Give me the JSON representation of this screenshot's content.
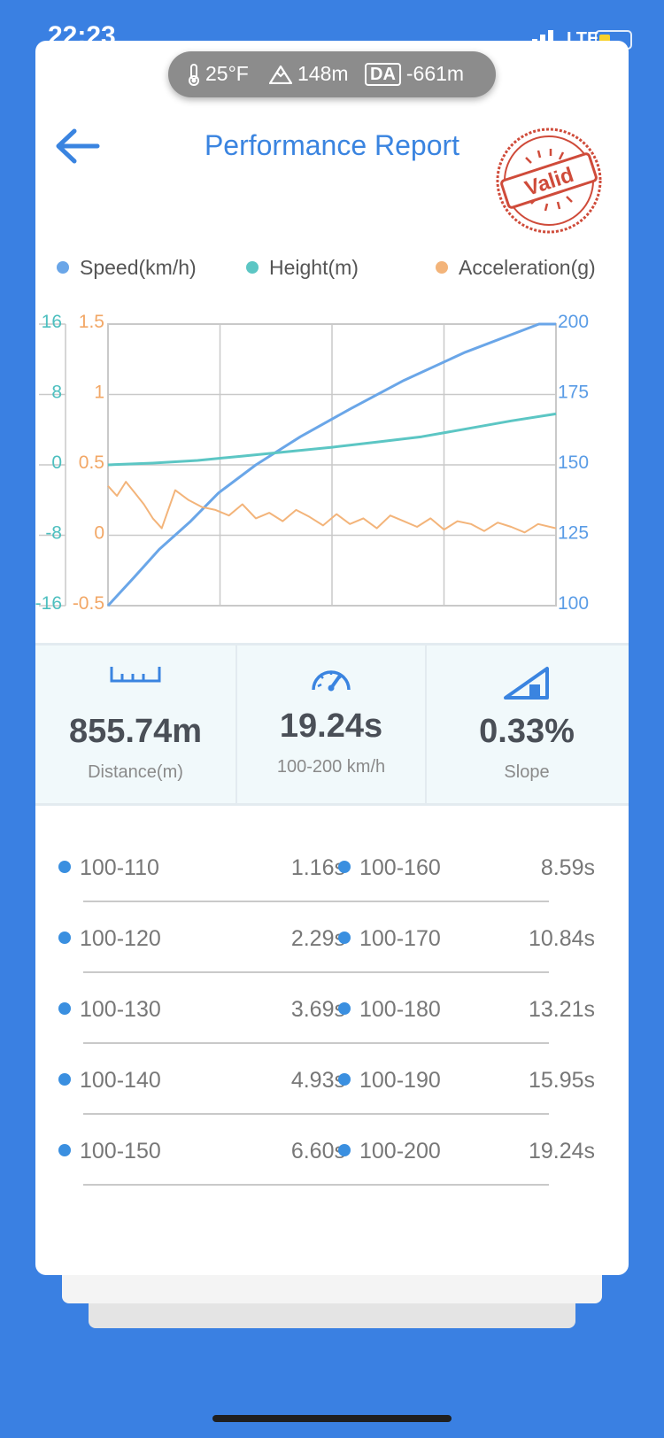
{
  "status_bar": {
    "time": "22:23",
    "network": "LTE"
  },
  "env": {
    "temperature": "25°F",
    "altitude": "148m",
    "da_label": "DA",
    "density_altitude": "-661m"
  },
  "header": {
    "title": "Performance Report",
    "stamp_text": "Valid"
  },
  "legend": [
    {
      "label": "Speed(km/h)",
      "color": "#6aa6e8"
    },
    {
      "label": "Height(m)",
      "color": "#5cc6c4"
    },
    {
      "label": "Acceleration(g)",
      "color": "#f3b47a"
    }
  ],
  "chart_data": {
    "type": "line",
    "height_axis": [
      "16",
      "8",
      "0",
      "-8",
      "-16"
    ],
    "accel_axis": [
      "1.5",
      "1",
      "0.5",
      "0",
      "-0.5"
    ],
    "speed_axis": [
      "200",
      "175",
      "150",
      "125",
      "100"
    ],
    "ylim_height": [
      -16,
      16
    ],
    "ylim_accel": [
      -0.5,
      1.5
    ],
    "ylim_speed": [
      100,
      200
    ],
    "xlim": [
      0,
      20
    ],
    "grid": true,
    "series": [
      {
        "name": "Speed(km/h)",
        "color": "#6aa6e8",
        "x": [
          0,
          1.16,
          2.29,
          3.69,
          4.93,
          6.6,
          8.59,
          10.84,
          13.21,
          15.95,
          19.24,
          20
        ],
        "y": [
          100,
          110,
          120,
          130,
          140,
          150,
          160,
          170,
          180,
          190,
          200,
          200
        ]
      },
      {
        "name": "Height(m)",
        "color": "#5cc6c4",
        "x": [
          0,
          2,
          4,
          6,
          8,
          10,
          12,
          14,
          16,
          18,
          20
        ],
        "y": [
          0,
          0.2,
          0.5,
          1.0,
          1.5,
          2.0,
          2.6,
          3.2,
          4.1,
          5.0,
          5.8
        ]
      },
      {
        "name": "Acceleration(g)",
        "color": "#f3b47a",
        "x": [
          0,
          0.4,
          0.8,
          1.2,
          1.6,
          2.0,
          2.4,
          3.0,
          3.6,
          4.2,
          4.8,
          5.4,
          6.0,
          6.6,
          7.2,
          7.8,
          8.4,
          9.0,
          9.6,
          10.2,
          10.8,
          11.4,
          12.0,
          12.6,
          13.2,
          13.8,
          14.4,
          15.0,
          15.6,
          16.2,
          16.8,
          17.4,
          18.0,
          18.6,
          19.2,
          20
        ],
        "y": [
          0.35,
          0.28,
          0.38,
          0.3,
          0.22,
          0.12,
          0.05,
          0.32,
          0.25,
          0.2,
          0.18,
          0.14,
          0.22,
          0.12,
          0.16,
          0.1,
          0.18,
          0.13,
          0.07,
          0.15,
          0.08,
          0.12,
          0.05,
          0.14,
          0.1,
          0.06,
          0.12,
          0.04,
          0.1,
          0.08,
          0.03,
          0.09,
          0.06,
          0.02,
          0.08,
          0.05
        ]
      }
    ]
  },
  "stats": [
    {
      "value": "855.74m",
      "label": "Distance(m)",
      "icon": "ruler-icon"
    },
    {
      "value": "19.24s",
      "label": "100-200 km/h",
      "icon": "speedometer-icon"
    },
    {
      "value": "0.33%",
      "label": "Slope",
      "icon": "slope-icon"
    }
  ],
  "splits": [
    {
      "range": "100-110",
      "time": "1.16s"
    },
    {
      "range": "100-160",
      "time": "8.59s"
    },
    {
      "range": "100-120",
      "time": "2.29s"
    },
    {
      "range": "100-170",
      "time": "10.84s"
    },
    {
      "range": "100-130",
      "time": "3.69s"
    },
    {
      "range": "100-180",
      "time": "13.21s"
    },
    {
      "range": "100-140",
      "time": "4.93s"
    },
    {
      "range": "100-190",
      "time": "15.95s"
    },
    {
      "range": "100-150",
      "time": "6.60s"
    },
    {
      "range": "100-200",
      "time": "19.24s"
    }
  ]
}
